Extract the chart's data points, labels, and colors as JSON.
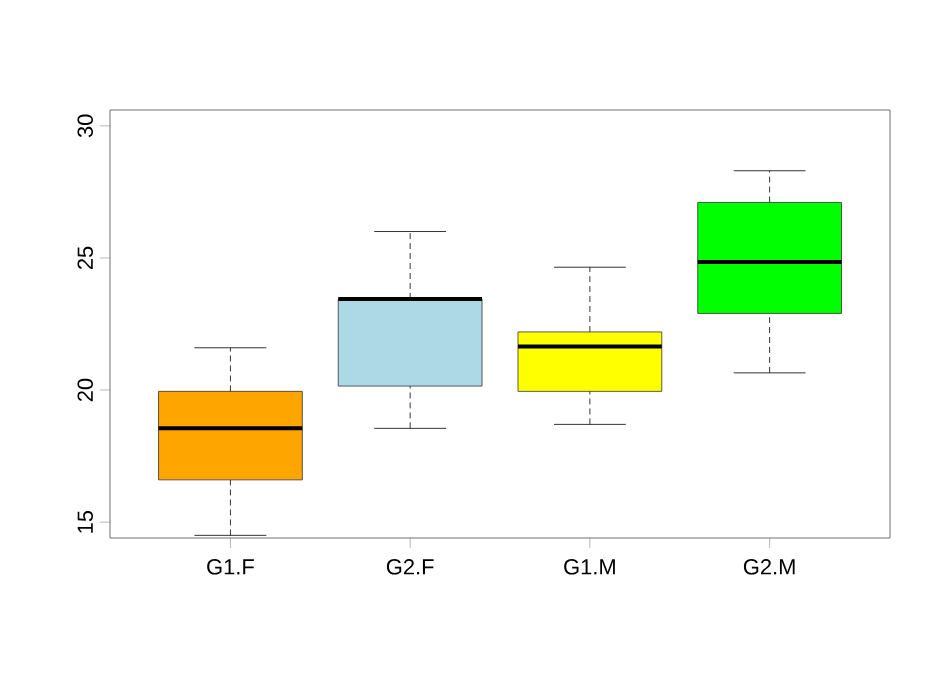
{
  "chart_data": {
    "type": "box",
    "categories": [
      "G1.F",
      "G2.F",
      "G1.M",
      "G2.M"
    ],
    "colors": [
      "#ffa500",
      "#add8e6",
      "#ffff00",
      "#00ff00"
    ],
    "boxes": [
      {
        "low": 14.5,
        "q1": 16.6,
        "median": 18.55,
        "q3": 19.95,
        "high": 21.6
      },
      {
        "low": 18.55,
        "q1": 20.15,
        "median": 23.45,
        "q3": 23.45,
        "high": 26.0
      },
      {
        "low": 18.7,
        "q1": 19.95,
        "median": 21.65,
        "q3": 22.2,
        "high": 24.65
      },
      {
        "low": 20.65,
        "q1": 22.9,
        "median": 24.85,
        "q3": 27.1,
        "high": 28.3
      }
    ],
    "ylim": [
      14.4,
      30.6
    ],
    "yticks": [
      15,
      20,
      25,
      30
    ]
  }
}
